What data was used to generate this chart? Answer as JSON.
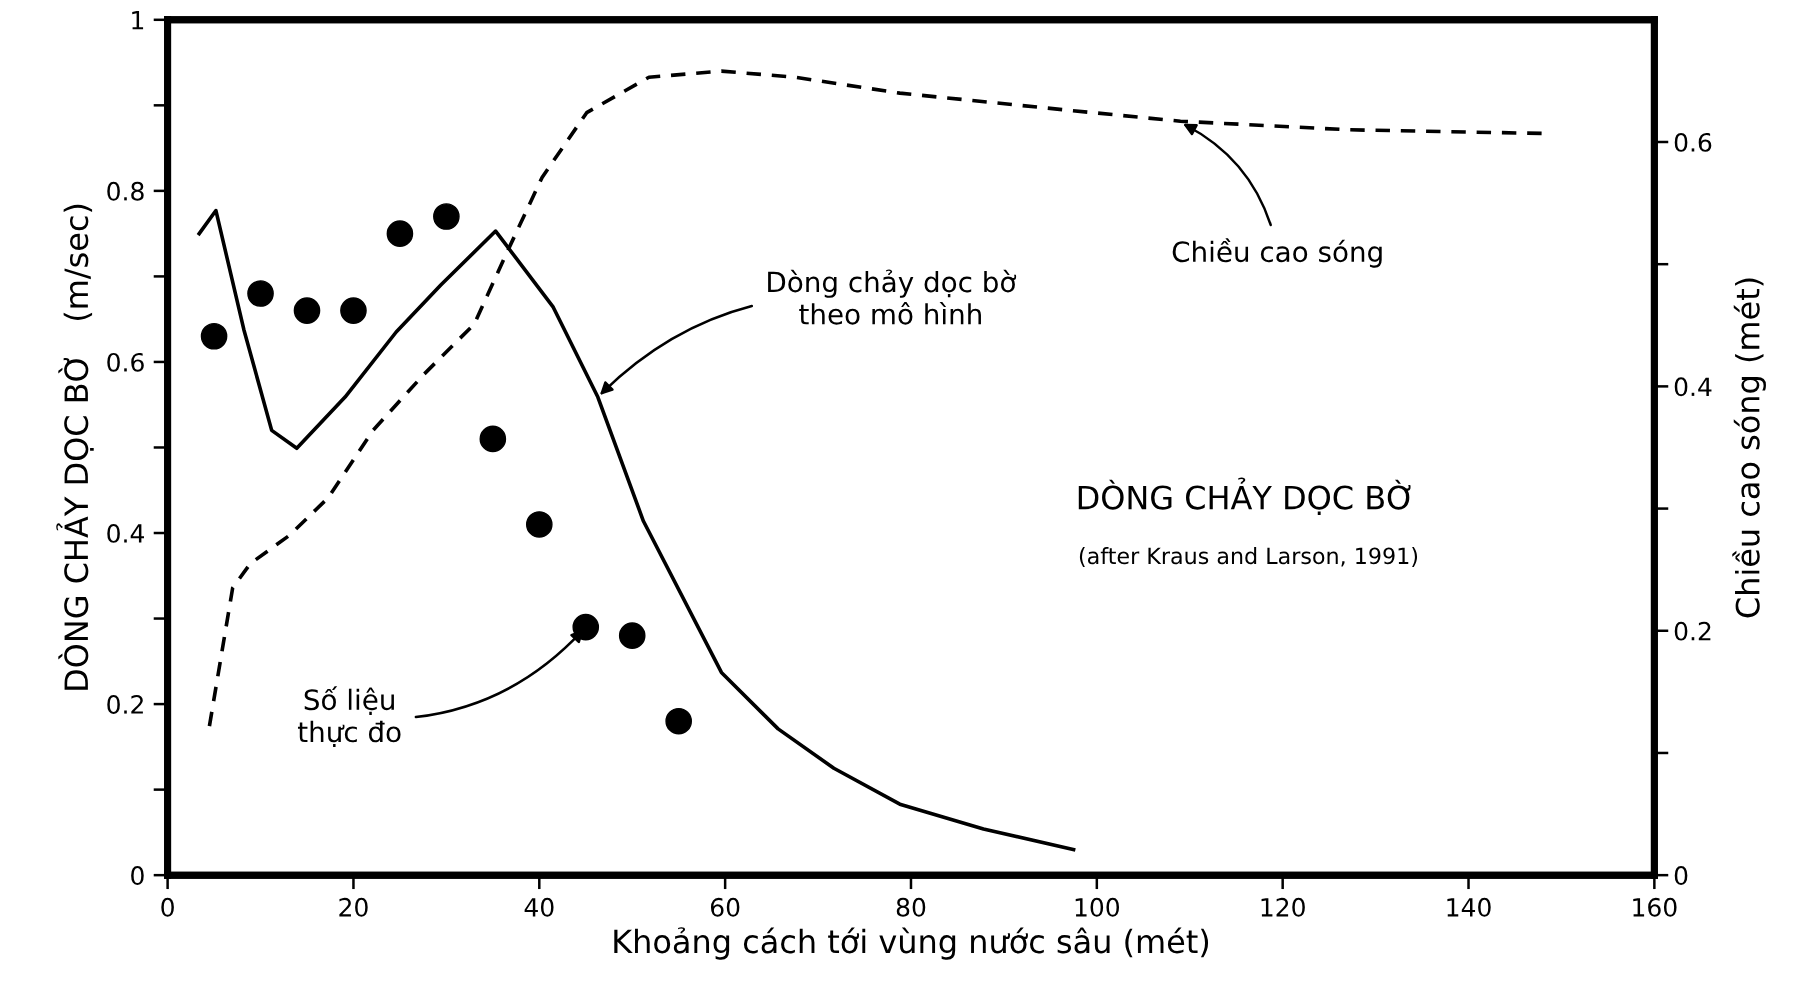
{
  "chart_data": {
    "type": "line",
    "xlabel": "Khoảng cách tới vùng nước sâu (mét)",
    "ylabel": "DÒNG CHẢY DỌC BỜ   (m/sec)",
    "y2label": "Chiều cao sóng (mét)",
    "xlim": [
      0,
      160
    ],
    "xticks": [
      0,
      20,
      40,
      60,
      80,
      100,
      120,
      140,
      160
    ],
    "ylim": [
      0,
      1
    ],
    "yticks": [
      0,
      {
        "value": 0.1,
        "label": null
      },
      0.2,
      {
        "value": 0.3,
        "label": null
      },
      0.4,
      {
        "value": 0.5,
        "label": null
      },
      0.6,
      {
        "value": 0.7,
        "label": null
      },
      0.8,
      {
        "value": 0.9,
        "label": null
      },
      1
    ],
    "y2lim": [
      0,
      0.7
    ],
    "y2ticks": [
      0,
      {
        "value": 0.1,
        "label": null
      },
      0.2,
      {
        "value": 0.3,
        "label": null
      },
      0.4,
      {
        "value": 0.5,
        "label": null
      },
      0.6
    ],
    "grid": false,
    "series": [
      {
        "color": "#000000",
        "line_style": "solid",
        "x": [
          3.4,
          5.2,
          8.2,
          11.2,
          13.9,
          19.1,
          24.6,
          29.4,
          35.3,
          41.5,
          46.3,
          51.2,
          59.6,
          65.7,
          71.7,
          78.8,
          87.8,
          97.5
        ],
        "values": [
          0.75,
          0.777,
          0.638,
          0.52,
          0.499,
          0.559,
          0.635,
          0.69,
          0.753,
          0.664,
          0.559,
          0.414,
          0.237,
          0.171,
          0.125,
          0.083,
          0.054,
          0.03
        ]
      },
      {
        "color": "#000000",
        "line_style": "dashed",
        "axis": "y2",
        "x": [
          4.5,
          7.0,
          8.9,
          13.1,
          17.3,
          22.1,
          27.6,
          33.0,
          36.6,
          40.3,
          45.1,
          51.8,
          59.6,
          67.5,
          78.8,
          96.9,
          109,
          127.1,
          148
        ],
        "values": [
          0.122,
          0.235,
          0.255,
          0.278,
          0.309,
          0.364,
          0.41,
          0.451,
          0.511,
          0.571,
          0.624,
          0.653,
          0.658,
          0.653,
          0.64,
          0.626,
          0.617,
          0.61,
          0.607
        ]
      },
      {
        "type": "scatter",
        "color": "#000000",
        "marker": "circle",
        "x": [
          5,
          10,
          15,
          20,
          25,
          30,
          35,
          40,
          45,
          50,
          55
        ],
        "values": [
          0.63,
          0.68,
          0.66,
          0.66,
          0.75,
          0.77,
          0.51,
          0.41,
          0.29,
          0.28,
          0.18
        ]
      }
    ],
    "annotations": [
      {
        "text": "Dòng chảy dọc bờ\ntheo mô hình",
        "x": 46.3,
        "y": 0.559
      },
      {
        "text": "Số liệu\nthực đo",
        "x": 45,
        "y": 0.29
      },
      {
        "text": "Chiều cao sóng",
        "x": 109,
        "y": 0.88
      },
      "DÒNG CHẢY DỌC BỜ",
      "(after Kraus and Larson, 1991)"
    ]
  }
}
